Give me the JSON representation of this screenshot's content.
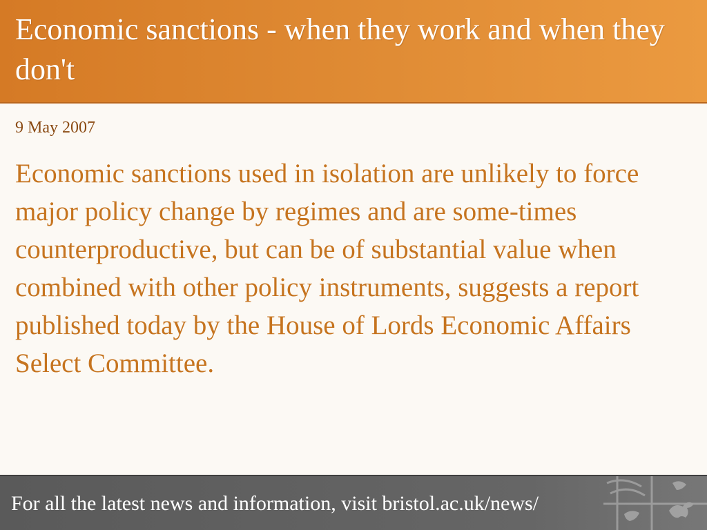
{
  "header": {
    "title": "Economic sanctions - when they work and when they don't"
  },
  "article": {
    "date": "9 May 2007",
    "body": "Economic sanctions used in isolation are unlikely to force major policy change by regimes and are some-times counterproductive, but can be of substantial value when combined with other policy instruments, suggests a report published today by the House of Lords Economic Affairs Select Committee."
  },
  "footer": {
    "text": "For all the latest news and information, visit bristol.ac.uk/news/",
    "crest_icon": "coat-of-arms-watermark"
  },
  "colors": {
    "header_bg": "#e08c35",
    "body_text": "#c6741f",
    "date_text": "#8a4a12",
    "footer_bg": "#666666",
    "page_bg": "#fcf9f4"
  }
}
